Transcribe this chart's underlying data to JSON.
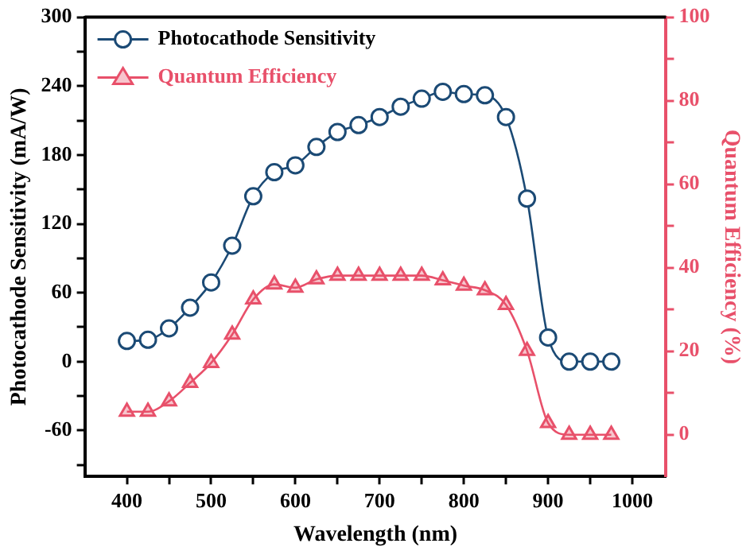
{
  "chart_data": {
    "type": "line",
    "xlabel": "Wavelength (nm)",
    "ylabel": "Photocathode Sensitivity (mA/W)",
    "y2label": "Quantum Efficiency (%)",
    "x": [
      400,
      425,
      450,
      475,
      500,
      525,
      550,
      575,
      600,
      625,
      650,
      675,
      700,
      725,
      750,
      775,
      800,
      825,
      850,
      875,
      900,
      925,
      950,
      975
    ],
    "series": [
      {
        "name": "Photocathode Sensitivity",
        "color": "#1b4a75",
        "marker": "circle",
        "values": [
          18,
          19,
          29,
          47,
          69,
          101,
          144,
          165,
          171,
          187,
          200,
          206,
          213,
          222,
          229,
          235,
          233,
          232,
          213,
          142,
          21,
          0,
          0,
          0
        ]
      },
      {
        "name": "Quantum Efficiency",
        "color": "#e8506a",
        "marker": "triangle",
        "axis": "y2",
        "values": [
          5.5,
          5.5,
          8,
          12.4,
          17.2,
          24,
          32.4,
          36,
          35.2,
          37.2,
          38.1,
          38.1,
          38.1,
          38.1,
          38.1,
          37,
          35.7,
          34.6,
          31.1,
          20.1,
          2.8,
          0,
          0,
          0
        ]
      }
    ],
    "xlim": [
      350,
      1040
    ],
    "xticks": [
      400,
      {
        "value": 450,
        "label": null
      },
      500,
      {
        "value": 550,
        "label": null
      },
      600,
      {
        "value": 650,
        "label": null
      },
      700,
      {
        "value": 750,
        "label": null
      },
      800,
      {
        "value": 850,
        "label": null
      },
      900,
      {
        "value": 950,
        "label": null
      },
      1000
    ],
    "ylim": [
      -100,
      300
    ],
    "yticks": [
      {
        "value": -90,
        "label": null
      },
      -60,
      {
        "value": -30,
        "label": null
      },
      0,
      {
        "value": 30,
        "label": null
      },
      60,
      {
        "value": 90,
        "label": null
      },
      120,
      {
        "value": 150,
        "label": null
      },
      180,
      {
        "value": 210,
        "label": null
      },
      240,
      {
        "value": 270,
        "label": null
      },
      300
    ],
    "y2lim": [
      -10,
      100
    ],
    "y2ticks": [
      0,
      {
        "value": 10,
        "label": null
      },
      20,
      {
        "value": 30,
        "label": null
      },
      40,
      {
        "value": 50,
        "label": null
      },
      60,
      {
        "value": 70,
        "label": null
      },
      80,
      {
        "value": 90,
        "label": null
      },
      100
    ],
    "grid": false,
    "legend": "top left",
    "line_style": "solid"
  }
}
